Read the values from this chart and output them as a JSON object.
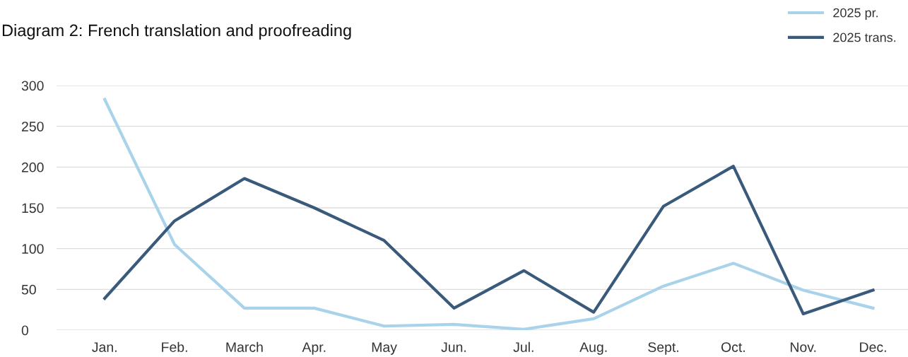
{
  "chart_data": {
    "type": "line",
    "title": "Diagram 2: French translation and proofreading",
    "categories": [
      "Jan.",
      "Feb.",
      "March",
      "Apr.",
      "May",
      "Jun.",
      "Jul.",
      "Aug.",
      "Sept.",
      "Oct.",
      "Nov.",
      "Dec."
    ],
    "series": [
      {
        "name": "2025 pr.",
        "color": "#a9d3ea",
        "values": [
          283,
          105,
          27,
          27,
          5,
          7,
          1,
          14,
          54,
          82,
          49,
          27
        ]
      },
      {
        "name": "2025 trans.",
        "color": "#3a5a7c",
        "values": [
          39,
          134,
          186,
          150,
          110,
          27,
          73,
          22,
          152,
          201,
          20,
          49
        ]
      }
    ],
    "ylim": [
      0,
      300
    ],
    "yticks": [
      0,
      50,
      100,
      150,
      200,
      250,
      300
    ],
    "grid": "y",
    "legend": "top right",
    "marker": "none",
    "line_style": "solid"
  }
}
